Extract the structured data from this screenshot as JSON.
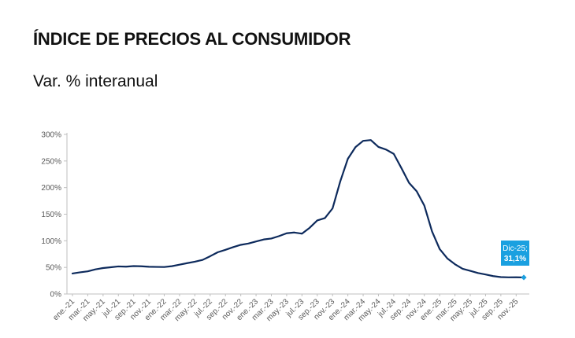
{
  "header": {
    "title": "ÍNDICE DE PRECIOS AL CONSUMIDOR",
    "subtitle": "Var. % interanual"
  },
  "colors": {
    "line": "#0d2a5c",
    "accent": "#1aa0e0",
    "axis": "#bfbfbf",
    "tick_text": "#595959"
  },
  "chart_data": {
    "type": "line",
    "title": "",
    "xlabel": "",
    "ylabel": "",
    "ylim": [
      0,
      300
    ],
    "y_ticks": [
      "0%",
      "50%",
      "100%",
      "150%",
      "200%",
      "250%",
      "300%"
    ],
    "grid": false,
    "x_tick_labels": [
      "ene.-21",
      "mar.-21",
      "may.-21",
      "jul.-21",
      "sep.-21",
      "nov.-21",
      "ene.-22",
      "mar.-22",
      "may.-22",
      "jul.-22",
      "sep.-22",
      "nov.-22",
      "ene.-23",
      "mar.-23",
      "may.-23",
      "jul.-23",
      "sep.-23",
      "nov.-23",
      "ene.-24",
      "mar.-24",
      "may.-24",
      "jul.-24",
      "sep.-24",
      "nov.-24",
      "ene.-25",
      "mar.-25",
      "may.-25",
      "jul.-25",
      "sep.-25",
      "nov.-25"
    ],
    "x": [
      "ene.-21",
      "feb.-21",
      "mar.-21",
      "abr.-21",
      "may.-21",
      "jun.-21",
      "jul.-21",
      "ago.-21",
      "sep.-21",
      "oct.-21",
      "nov.-21",
      "dic.-21",
      "ene.-22",
      "feb.-22",
      "mar.-22",
      "abr.-22",
      "may.-22",
      "jun.-22",
      "jul.-22",
      "ago.-22",
      "sep.-22",
      "oct.-22",
      "nov.-22",
      "dic.-22",
      "ene.-23",
      "feb.-23",
      "mar.-23",
      "abr.-23",
      "may.-23",
      "jun.-23",
      "jul.-23",
      "ago.-23",
      "sep.-23",
      "oct.-23",
      "nov.-23",
      "dic.-23",
      "ene.-24",
      "feb.-24",
      "mar.-24",
      "abr.-24",
      "may.-24",
      "jun.-24",
      "jul.-24",
      "ago.-24",
      "sep.-24",
      "oct.-24",
      "nov.-24",
      "dic.-24",
      "ene.-25",
      "feb.-25",
      "mar.-25",
      "abr.-25",
      "may.-25",
      "jun.-25",
      "jul.-25",
      "ago.-25",
      "sep.-25",
      "oct.-25",
      "nov.-25",
      "dic.-25"
    ],
    "series": [
      {
        "values": [
          38.5,
          40.7,
          42.6,
          46.3,
          48.8,
          50.2,
          51.8,
          51.4,
          52.5,
          52.1,
          51.2,
          50.9,
          50.7,
          52.3,
          55.1,
          58.0,
          60.7,
          64.0,
          71.0,
          78.5,
          83.0,
          88.0,
          92.4,
          94.8,
          98.8,
          102.5,
          104.3,
          108.8,
          114.2,
          115.6,
          113.4,
          124.4,
          138.3,
          142.7,
          160.9,
          211.4,
          254.2,
          276.2,
          287.9,
          289.4,
          276.4,
          271.5,
          263.4,
          236.7,
          209.0,
          193.0,
          166.0,
          117.8,
          84.5,
          66.9,
          55.9,
          47.3,
          43.5,
          39.4,
          36.6,
          33.6,
          31.8,
          31.3,
          31.4,
          31.1
        ]
      }
    ],
    "annotation": {
      "label": "Dic-25;",
      "value_label": "31,1%",
      "x": "dic.-25",
      "y": 31.1
    }
  }
}
